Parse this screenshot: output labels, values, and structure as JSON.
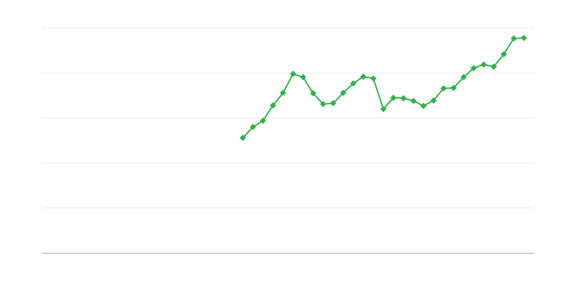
{
  "chart_data": {
    "type": "line",
    "title": "",
    "xlabel": "",
    "ylabel": "",
    "xlim": [
      0,
      49
    ],
    "ylim": [
      0,
      5
    ],
    "grid": true,
    "gridlines_y": [
      1,
      2,
      3,
      4,
      5
    ],
    "legend": "none",
    "colors": {
      "series": "#34b04a",
      "grid": "#ebebeb",
      "axis": "#aaaaaa"
    },
    "series": [
      {
        "x": [
          20,
          21,
          22,
          23,
          24,
          25,
          26,
          27,
          28,
          29,
          30,
          31,
          32,
          33,
          34,
          35,
          36,
          37,
          38,
          39,
          40,
          41,
          42,
          43,
          44,
          45,
          46,
          47,
          48
        ],
        "values": [
          2.56,
          2.8,
          2.94,
          3.28,
          3.56,
          3.98,
          3.91,
          3.55,
          3.31,
          3.33,
          3.56,
          3.77,
          3.92,
          3.88,
          3.2,
          3.45,
          3.44,
          3.38,
          3.27,
          3.39,
          3.66,
          3.67,
          3.91,
          4.11,
          4.19,
          4.14,
          4.42,
          4.77,
          4.78
        ],
        "marker": "diamond"
      }
    ]
  }
}
